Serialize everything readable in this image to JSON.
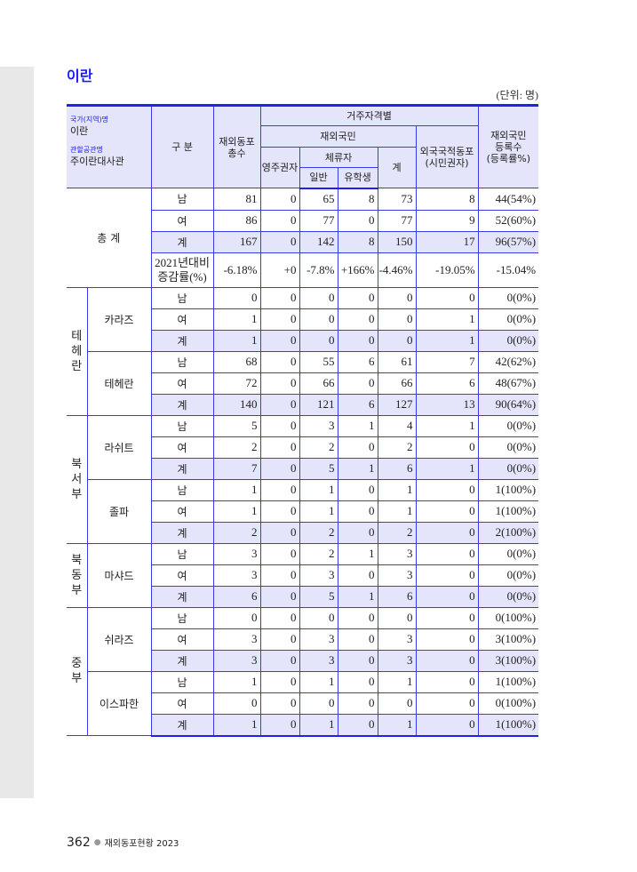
{
  "title": "이란",
  "unit": "(단위:  명)",
  "header": {
    "country_label": "국가(지역)명",
    "country": "이란",
    "mission_label": "관할공관명",
    "mission": "주이란대사관",
    "category": "구 분",
    "total": "재외동포\n총수",
    "residence": "거주자격별",
    "nationals": "재외국민",
    "permanent": "영주권자",
    "sojourner": "체류자",
    "general": "일반",
    "student": "유학생",
    "subtotal": "계",
    "foreign": "외국국적동포\n(시민권자)",
    "registered": "재외국민\n등록수\n(등록률%)"
  },
  "total_section": {
    "label": "총    계",
    "rows": [
      {
        "k": "남",
        "v": [
          "81",
          "0",
          "65",
          "8",
          "73",
          "8",
          "44(54%)"
        ]
      },
      {
        "k": "여",
        "v": [
          "86",
          "0",
          "77",
          "0",
          "77",
          "9",
          "52(60%)"
        ]
      },
      {
        "k": "계",
        "v": [
          "167",
          "0",
          "142",
          "8",
          "150",
          "17",
          "96(57%)"
        ]
      }
    ],
    "change": {
      "k": "2021년대비\n증감률(%)",
      "v": [
        "-6.18%",
        "+0",
        "-7.8%",
        "+166%",
        "-4.46%",
        "-19.05%",
        "-15.04%"
      ]
    }
  },
  "regions": [
    {
      "name": "테\n헤\n란",
      "cities": [
        {
          "name": "카라즈",
          "rows": [
            [
              "남",
              "0",
              "0",
              "0",
              "0",
              "0",
              "0",
              "0(0%)"
            ],
            [
              "여",
              "1",
              "0",
              "0",
              "0",
              "0",
              "1",
              "0(0%)"
            ],
            [
              "계",
              "1",
              "0",
              "0",
              "0",
              "0",
              "1",
              "0(0%)"
            ]
          ]
        },
        {
          "name": "테헤란",
          "rows": [
            [
              "남",
              "68",
              "0",
              "55",
              "6",
              "61",
              "7",
              "42(62%)"
            ],
            [
              "여",
              "72",
              "0",
              "66",
              "0",
              "66",
              "6",
              "48(67%)"
            ],
            [
              "계",
              "140",
              "0",
              "121",
              "6",
              "127",
              "13",
              "90(64%)"
            ]
          ]
        }
      ]
    },
    {
      "name": "북\n서\n부",
      "cities": [
        {
          "name": "라쉬트",
          "rows": [
            [
              "남",
              "5",
              "0",
              "3",
              "1",
              "4",
              "1",
              "0(0%)"
            ],
            [
              "여",
              "2",
              "0",
              "2",
              "0",
              "2",
              "0",
              "0(0%)"
            ],
            [
              "계",
              "7",
              "0",
              "5",
              "1",
              "6",
              "1",
              "0(0%)"
            ]
          ]
        },
        {
          "name": "졸파",
          "rows": [
            [
              "남",
              "1",
              "0",
              "1",
              "0",
              "1",
              "0",
              "1(100%)"
            ],
            [
              "여",
              "1",
              "0",
              "1",
              "0",
              "1",
              "0",
              "1(100%)"
            ],
            [
              "계",
              "2",
              "0",
              "2",
              "0",
              "2",
              "0",
              "2(100%)"
            ]
          ]
        }
      ]
    },
    {
      "name": "북\n동\n부",
      "cities": [
        {
          "name": "마샤드",
          "rows": [
            [
              "남",
              "3",
              "0",
              "2",
              "1",
              "3",
              "0",
              "0(0%)"
            ],
            [
              "여",
              "3",
              "0",
              "3",
              "0",
              "3",
              "0",
              "0(0%)"
            ],
            [
              "계",
              "6",
              "0",
              "5",
              "1",
              "6",
              "0",
              "0(0%)"
            ]
          ]
        }
      ]
    },
    {
      "name": "중\n부",
      "cities": [
        {
          "name": "쉬라즈",
          "rows": [
            [
              "남",
              "0",
              "0",
              "0",
              "0",
              "0",
              "0",
              "0(100%)"
            ],
            [
              "여",
              "3",
              "0",
              "3",
              "0",
              "3",
              "0",
              "3(100%)"
            ],
            [
              "계",
              "3",
              "0",
              "3",
              "0",
              "3",
              "0",
              "3(100%)"
            ]
          ]
        },
        {
          "name": "이스파한",
          "rows": [
            [
              "남",
              "1",
              "0",
              "1",
              "0",
              "1",
              "0",
              "1(100%)"
            ],
            [
              "여",
              "0",
              "0",
              "0",
              "0",
              "0",
              "0",
              "0(100%)"
            ],
            [
              "계",
              "1",
              "0",
              "1",
              "0",
              "1",
              "0",
              "1(100%)"
            ]
          ]
        }
      ]
    }
  ],
  "footer": {
    "page": "362",
    "book": "재외동포현황 2023"
  }
}
